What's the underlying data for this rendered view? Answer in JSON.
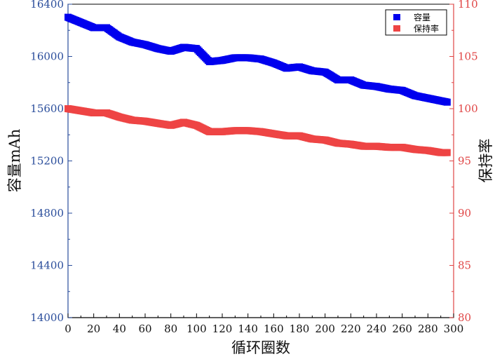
{
  "chart_data": {
    "type": "scatter",
    "xlabel": "循环圈数",
    "ylabel_left": "容量mAh",
    "ylabel_right": "保持率",
    "xlim": [
      0,
      300
    ],
    "ylim_left": [
      14000,
      16400
    ],
    "ylim_right": [
      80,
      110
    ],
    "x_ticks": [
      "0",
      "20",
      "40",
      "60",
      "80",
      "100",
      "120",
      "140",
      "160",
      "180",
      "200",
      "220",
      "240",
      "260",
      "280",
      "300"
    ],
    "y_left_ticks": [
      "14000",
      "14400",
      "14800",
      "15200",
      "15600",
      "16000",
      "16400"
    ],
    "y_right_ticks": [
      "80",
      "85",
      "90",
      "95",
      "100",
      "105",
      "110"
    ],
    "grid": false,
    "legend_position": "top-right",
    "series": [
      {
        "name": "容量",
        "axis": "left",
        "color": "#0000ee",
        "x": [
          0,
          10,
          20,
          30,
          40,
          50,
          60,
          70,
          80,
          90,
          100,
          110,
          120,
          130,
          140,
          150,
          160,
          170,
          180,
          190,
          200,
          210,
          220,
          230,
          240,
          250,
          260,
          270,
          280,
          290,
          295
        ],
        "values": [
          16300,
          16260,
          16220,
          16220,
          16150,
          16110,
          16090,
          16060,
          16040,
          16070,
          16060,
          15960,
          15970,
          15990,
          15990,
          15980,
          15950,
          15910,
          15920,
          15890,
          15880,
          15820,
          15820,
          15780,
          15770,
          15750,
          15740,
          15700,
          15680,
          15660,
          15650
        ]
      },
      {
        "name": "保持率",
        "axis": "right",
        "color": "#ee4444",
        "x": [
          0,
          10,
          20,
          30,
          40,
          50,
          60,
          70,
          80,
          90,
          100,
          110,
          120,
          130,
          140,
          150,
          160,
          170,
          180,
          190,
          200,
          210,
          220,
          230,
          240,
          250,
          260,
          270,
          280,
          290,
          295
        ],
        "values": [
          100.0,
          99.8,
          99.6,
          99.6,
          99.2,
          98.9,
          98.8,
          98.6,
          98.4,
          98.7,
          98.4,
          97.8,
          97.8,
          97.9,
          97.9,
          97.8,
          97.6,
          97.4,
          97.4,
          97.1,
          97.0,
          96.7,
          96.6,
          96.4,
          96.4,
          96.3,
          96.3,
          96.1,
          96.0,
          95.8,
          95.8
        ]
      }
    ]
  }
}
